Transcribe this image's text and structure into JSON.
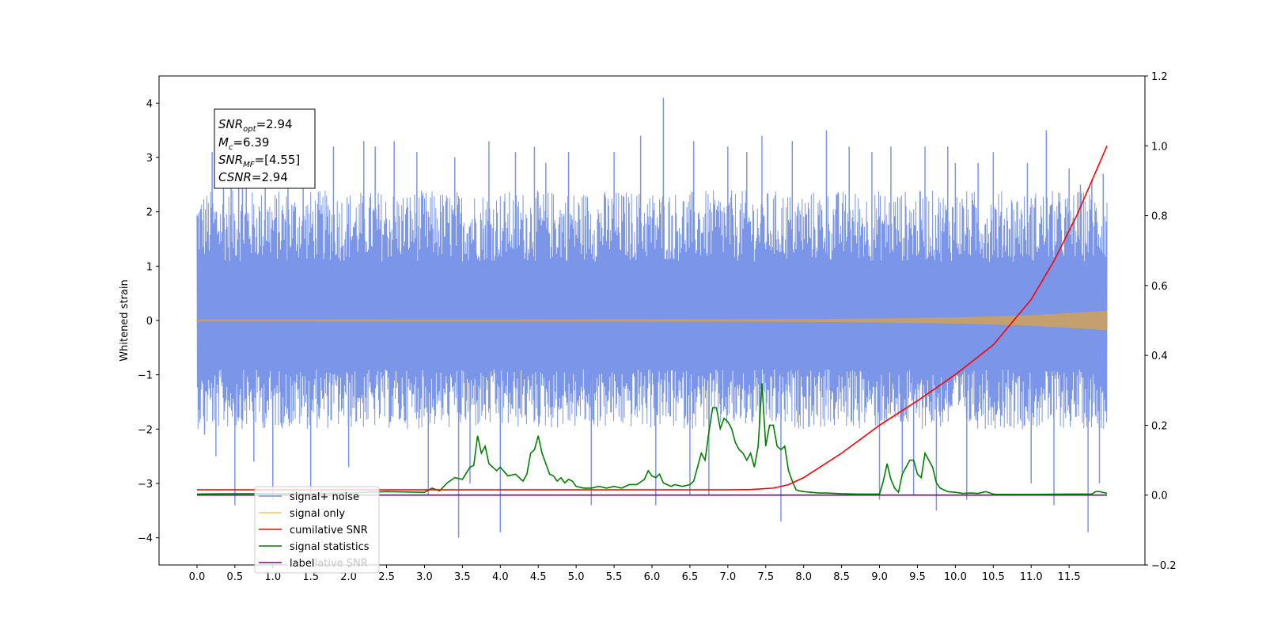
{
  "chart_data": {
    "type": "line",
    "ylabel": "Whitened strain",
    "xlabel": "",
    "title": "",
    "xlim": [
      -0.5,
      12.5
    ],
    "ylim_left": [
      -4.5,
      4.5
    ],
    "ylim_right": [
      -0.2,
      1.2
    ],
    "x_ticks": [
      0.0,
      0.5,
      1.0,
      1.5,
      2.0,
      2.5,
      3.0,
      3.5,
      4.0,
      4.5,
      5.0,
      5.5,
      6.0,
      6.5,
      7.0,
      7.5,
      8.0,
      8.5,
      9.0,
      9.5,
      10.0,
      10.5,
      11.0,
      11.5
    ],
    "x_tick_labels": [
      "0.0",
      "0.5",
      "1.0",
      "1.5",
      "2.0",
      "2.5",
      "3.0",
      "3.5",
      "4.0",
      "4.5",
      "5.0",
      "5.5",
      "6.0",
      "6.5",
      "7.0",
      "7.5",
      "8.0",
      "8.5",
      "9.0",
      "9.5",
      "10.0",
      "10.5",
      "11.0",
      "11.5"
    ],
    "y_left_ticks": [
      4,
      3,
      2,
      1,
      0,
      -1,
      -2,
      -3,
      -4
    ],
    "y_left_tick_labels": [
      "4",
      "3",
      "2",
      "1",
      "0",
      "−1",
      "−2",
      "−3",
      "−4"
    ],
    "y_right_ticks": [
      1.2,
      1.0,
      0.8,
      0.6,
      0.4,
      0.2,
      0.0,
      -0.2
    ],
    "y_right_tick_labels": [
      "1.2",
      "1.0",
      "0.8",
      "0.6",
      "0.4",
      "0.2",
      "0.0",
      "−0.2"
    ],
    "grid": false,
    "legend_location": "lower-left",
    "series": [
      {
        "name": "signal+ noise",
        "axis": "left",
        "color": "#7b96e8",
        "x_range": [
          0.0,
          12.0
        ],
        "band_low": -2.0,
        "band_high": 2.4,
        "spikes": [
          [
            0.05,
            1.8
          ],
          [
            0.1,
            -2.1
          ],
          [
            0.2,
            3.1
          ],
          [
            0.25,
            -2.5
          ],
          [
            0.35,
            2.9
          ],
          [
            0.45,
            3.0
          ],
          [
            0.5,
            -3.4
          ],
          [
            0.55,
            2.6
          ],
          [
            0.6,
            3.3
          ],
          [
            0.65,
            2.5
          ],
          [
            0.75,
            -2.6
          ],
          [
            0.9,
            3.2
          ],
          [
            1.0,
            -3.3
          ],
          [
            1.2,
            2.8
          ],
          [
            1.4,
            3.3
          ],
          [
            1.5,
            -3.2
          ],
          [
            1.8,
            3.2
          ],
          [
            2.0,
            -2.7
          ],
          [
            2.2,
            3.3
          ],
          [
            2.35,
            3.2
          ],
          [
            2.6,
            3.3
          ],
          [
            2.9,
            3.1
          ],
          [
            3.05,
            -3.2
          ],
          [
            3.4,
            3.0
          ],
          [
            3.45,
            -4.0
          ],
          [
            3.6,
            -3.0
          ],
          [
            3.85,
            3.3
          ],
          [
            4.0,
            -3.9
          ],
          [
            4.2,
            3.1
          ],
          [
            4.45,
            3.2
          ],
          [
            4.6,
            2.9
          ],
          [
            4.9,
            3.1
          ],
          [
            5.2,
            -3.4
          ],
          [
            5.5,
            3.1
          ],
          [
            5.85,
            3.4
          ],
          [
            6.05,
            -3.4
          ],
          [
            6.15,
            4.1
          ],
          [
            6.5,
            -3.2
          ],
          [
            6.55,
            3.3
          ],
          [
            6.75,
            -3.2
          ],
          [
            7.0,
            3.2
          ],
          [
            7.25,
            3.1
          ],
          [
            7.45,
            3.4
          ],
          [
            7.7,
            -3.7
          ],
          [
            7.85,
            3.3
          ],
          [
            8.3,
            3.5
          ],
          [
            8.6,
            3.2
          ],
          [
            8.9,
            3.1
          ],
          [
            9.0,
            -3.3
          ],
          [
            9.15,
            3.2
          ],
          [
            9.3,
            -2.8
          ],
          [
            9.45,
            -3.2
          ],
          [
            9.6,
            3.2
          ],
          [
            9.75,
            -3.5
          ],
          [
            9.9,
            3.2
          ],
          [
            10.0,
            2.9
          ],
          [
            10.15,
            -3.3
          ],
          [
            10.3,
            2.9
          ],
          [
            10.5,
            3.1
          ],
          [
            10.95,
            2.9
          ],
          [
            11.0,
            -3.0
          ],
          [
            11.2,
            3.5
          ],
          [
            11.3,
            -3.4
          ],
          [
            11.5,
            2.8
          ],
          [
            11.65,
            2.5
          ],
          [
            11.75,
            -3.9
          ],
          [
            11.8,
            2.6
          ],
          [
            11.9,
            -3.0
          ],
          [
            11.95,
            2.7
          ]
        ]
      },
      {
        "name": "signal only",
        "axis": "left",
        "color": "#c4a06e",
        "legend_color": "#ffc45c",
        "x_range": [
          0.0,
          12.0
        ],
        "amplitude_points": [
          [
            0.0,
            0.01
          ],
          [
            6.0,
            0.015
          ],
          [
            8.0,
            0.02
          ],
          [
            9.0,
            0.03
          ],
          [
            10.0,
            0.05
          ],
          [
            11.0,
            0.09
          ],
          [
            12.0,
            0.17
          ]
        ]
      },
      {
        "name": "cumilative SNR",
        "axis": "right",
        "color": "#ff0000",
        "x": [
          0.0,
          7.0,
          7.3,
          7.6,
          7.8,
          8.0,
          8.2,
          8.5,
          9.0,
          9.5,
          10.0,
          10.5,
          11.0,
          11.3,
          11.6,
          12.0
        ],
        "y": [
          0.015,
          0.015,
          0.016,
          0.02,
          0.03,
          0.05,
          0.078,
          0.12,
          0.2,
          0.27,
          0.345,
          0.43,
          0.56,
          0.67,
          0.8,
          1.0
        ]
      },
      {
        "name": "signal statistics",
        "axis": "right",
        "color": "#008000",
        "x": [
          0.0,
          0.5,
          1.0,
          1.5,
          2.0,
          2.5,
          3.0,
          3.1,
          3.2,
          3.3,
          3.4,
          3.5,
          3.6,
          3.65,
          3.7,
          3.75,
          3.8,
          3.85,
          3.9,
          3.95,
          4.0,
          4.1,
          4.2,
          4.3,
          4.35,
          4.4,
          4.45,
          4.5,
          4.55,
          4.6,
          4.65,
          4.7,
          4.75,
          4.8,
          4.85,
          4.9,
          4.95,
          5.0,
          5.1,
          5.2,
          5.3,
          5.4,
          5.5,
          5.6,
          5.7,
          5.8,
          5.9,
          5.95,
          6.0,
          6.05,
          6.1,
          6.15,
          6.2,
          6.25,
          6.3,
          6.4,
          6.5,
          6.55,
          6.6,
          6.65,
          6.7,
          6.75,
          6.8,
          6.85,
          6.9,
          6.95,
          7.0,
          7.05,
          7.1,
          7.15,
          7.2,
          7.25,
          7.3,
          7.35,
          7.4,
          7.45,
          7.5,
          7.55,
          7.6,
          7.65,
          7.7,
          7.75,
          7.8,
          7.85,
          7.9,
          7.95,
          8.0,
          8.1,
          8.2,
          8.3,
          8.5,
          8.7,
          9.0,
          9.05,
          9.1,
          9.15,
          9.2,
          9.25,
          9.3,
          9.35,
          9.4,
          9.45,
          9.5,
          9.55,
          9.6,
          9.65,
          9.7,
          9.75,
          9.8,
          9.85,
          9.9,
          10.0,
          10.1,
          10.2,
          10.3,
          10.4,
          10.5,
          10.55,
          10.6,
          10.7,
          10.8,
          11.0,
          11.5,
          11.8,
          11.85,
          11.9,
          12.0
        ],
        "y": [
          0.003,
          0.004,
          0.004,
          0.004,
          0.006,
          0.01,
          0.008,
          0.02,
          0.012,
          0.035,
          0.05,
          0.045,
          0.08,
          0.085,
          0.17,
          0.12,
          0.14,
          0.09,
          0.08,
          0.07,
          0.08,
          0.055,
          0.06,
          0.04,
          0.06,
          0.12,
          0.13,
          0.17,
          0.12,
          0.09,
          0.06,
          0.055,
          0.04,
          0.05,
          0.035,
          0.045,
          0.04,
          0.025,
          0.02,
          0.02,
          0.025,
          0.02,
          0.025,
          0.02,
          0.03,
          0.03,
          0.045,
          0.07,
          0.055,
          0.05,
          0.06,
          0.035,
          0.03,
          0.025,
          0.03,
          0.025,
          0.03,
          0.04,
          0.08,
          0.12,
          0.1,
          0.18,
          0.25,
          0.25,
          0.19,
          0.22,
          0.21,
          0.19,
          0.15,
          0.13,
          0.12,
          0.1,
          0.12,
          0.08,
          0.14,
          0.32,
          0.14,
          0.2,
          0.2,
          0.14,
          0.13,
          0.14,
          0.07,
          0.04,
          0.015,
          0.012,
          0.01,
          0.008,
          0.006,
          0.006,
          0.004,
          0.003,
          0.003,
          0.04,
          0.09,
          0.045,
          0.02,
          0.008,
          0.06,
          0.08,
          0.1,
          0.1,
          0.06,
          0.05,
          0.12,
          0.1,
          0.08,
          0.035,
          0.02,
          0.015,
          0.01,
          0.008,
          0.005,
          0.006,
          0.005,
          0.01,
          0.003,
          0.002,
          0.002,
          0.002,
          0.002,
          0.002,
          0.003,
          0.003,
          0.01,
          0.01,
          0.005
        ]
      },
      {
        "name": "label",
        "axis": "right",
        "color": "#800080",
        "x": [
          0.0,
          12.0
        ],
        "y": [
          0.0,
          0.0
        ]
      }
    ],
    "legend_extra_text": "cumilative SNR"
  },
  "annotation": {
    "lines": [
      {
        "base": "SNR",
        "sub": "opt",
        "rest": "=2.94"
      },
      {
        "base": "M",
        "sub": "c",
        "rest": "=6.39"
      },
      {
        "base": "SNR",
        "sub": "MF",
        "rest": "=[4.55]"
      },
      {
        "base": "CSNR",
        "sub": "",
        "rest": "=2.94"
      }
    ]
  }
}
